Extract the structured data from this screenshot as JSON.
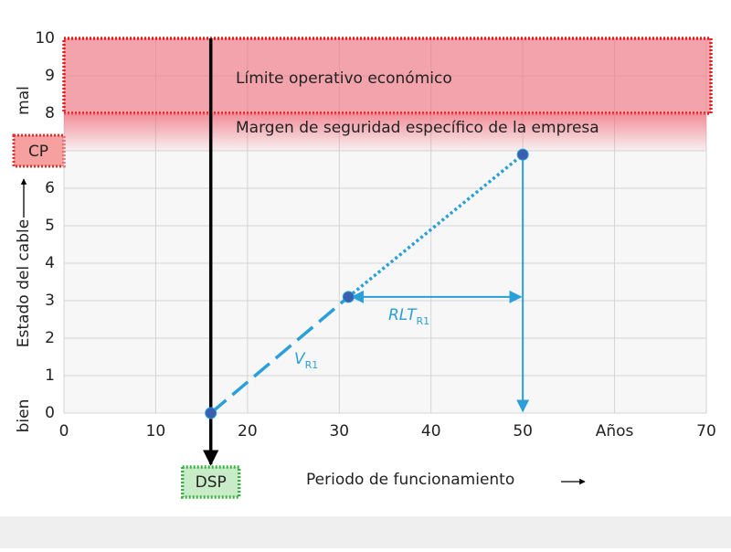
{
  "chart_data": {
    "type": "line",
    "x_label": "Periodo de funcionamiento",
    "y_label": "Estado del cable",
    "y_top_label": "mal",
    "y_bottom_label": "bien",
    "xlim": [
      0,
      70
    ],
    "xticks": [
      0,
      10,
      20,
      30,
      40,
      50,
      {
        "value": 60,
        "label": "Años"
      },
      70
    ],
    "ylim": [
      0,
      10
    ],
    "yticks": [
      0,
      1,
      2,
      3,
      4,
      5,
      6,
      {
        "value": 7,
        "label": "CP"
      },
      8,
      9,
      10
    ],
    "grid": true,
    "x": [
      16,
      31,
      50
    ],
    "series": [
      {
        "color": "#2a9fd8",
        "values": [
          0,
          3.1,
          6.9
        ]
      }
    ],
    "zones": [
      {
        "label": "Límite operativo económico",
        "from": 8,
        "to": 10,
        "color": "#f06a78"
      },
      {
        "label": "Margen de seguridad específico de la empresa",
        "from": 7,
        "to": 8,
        "color": "#f06a78"
      }
    ],
    "marker": {
      "label": "DSP",
      "x": 16
    },
    "annotations": [
      {
        "text": "V",
        "subscript": "R1"
      },
      {
        "text": "RLT",
        "subscript": "R1"
      }
    ]
  }
}
